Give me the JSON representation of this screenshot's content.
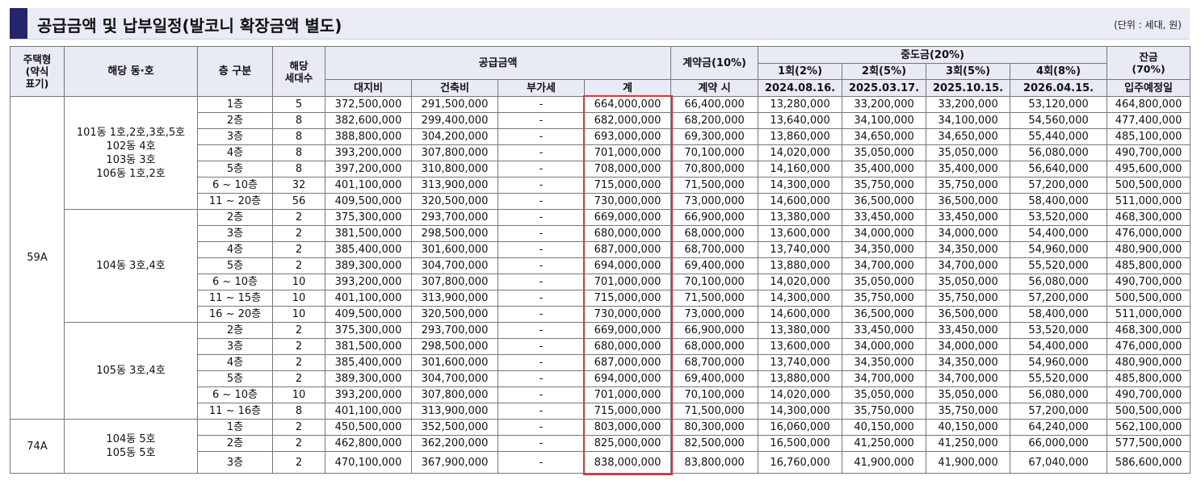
{
  "title": "공급금액 및 납부일정(발코니 확장금액 별도)",
  "unit": "(단위 : 세대, 원)",
  "header": {
    "type": "주택형\n(약식\n표기)",
    "dong_ho": "해당 동·호",
    "floor": "층 구분",
    "units": "해당\n세대수",
    "supply_price": "공급금액",
    "land": "대지비",
    "building": "건축비",
    "vat": "부가세",
    "total": "계",
    "deposit": "계약금(10%)",
    "deposit_when": "계약 시",
    "middle": "중도금(20%)",
    "m1": "1회(2%)",
    "m2": "2회(5%)",
    "m3": "3회(5%)",
    "m4": "4회(8%)",
    "m1_date": "2024.08.16.",
    "m2_date": "2025.03.17.",
    "m3_date": "2025.10.15.",
    "m4_date": "2026.04.15.",
    "balance": "잔금\n(70%)",
    "balance_when": "입주예정일"
  },
  "types": [
    {
      "label": "59A",
      "rows": 20
    },
    {
      "label": "74A",
      "rows": 3
    }
  ],
  "groups": [
    {
      "rows": 7,
      "lines": [
        "101동 1호,2호,3호,5호",
        "102동 4호",
        "103동 3호",
        "106동 1호,2호"
      ]
    },
    {
      "rows": 7,
      "lines": [
        "104동 3호,4호"
      ]
    },
    {
      "rows": 6,
      "lines": [
        "105동 3호,4호"
      ]
    },
    {
      "rows": 3,
      "lines": [
        "104동 5호",
        "105동 5호"
      ]
    }
  ],
  "rows": [
    [
      "1층",
      "5",
      "372,500,000",
      "291,500,000",
      "-",
      "664,000,000",
      "66,400,000",
      "13,280,000",
      "33,200,000",
      "33,200,000",
      "53,120,000",
      "464,800,000"
    ],
    [
      "2층",
      "8",
      "382,600,000",
      "299,400,000",
      "-",
      "682,000,000",
      "68,200,000",
      "13,640,000",
      "34,100,000",
      "34,100,000",
      "54,560,000",
      "477,400,000"
    ],
    [
      "3층",
      "8",
      "388,800,000",
      "304,200,000",
      "-",
      "693,000,000",
      "69,300,000",
      "13,860,000",
      "34,650,000",
      "34,650,000",
      "55,440,000",
      "485,100,000"
    ],
    [
      "4층",
      "8",
      "393,200,000",
      "307,800,000",
      "-",
      "701,000,000",
      "70,100,000",
      "14,020,000",
      "35,050,000",
      "35,050,000",
      "56,080,000",
      "490,700,000"
    ],
    [
      "5층",
      "8",
      "397,200,000",
      "310,800,000",
      "-",
      "708,000,000",
      "70,800,000",
      "14,160,000",
      "35,400,000",
      "35,400,000",
      "56,640,000",
      "495,600,000"
    ],
    [
      "6 ~ 10층",
      "32",
      "401,100,000",
      "313,900,000",
      "-",
      "715,000,000",
      "71,500,000",
      "14,300,000",
      "35,750,000",
      "35,750,000",
      "57,200,000",
      "500,500,000"
    ],
    [
      "11 ~ 20층",
      "56",
      "409,500,000",
      "320,500,000",
      "-",
      "730,000,000",
      "73,000,000",
      "14,600,000",
      "36,500,000",
      "36,500,000",
      "58,400,000",
      "511,000,000"
    ],
    [
      "2층",
      "2",
      "375,300,000",
      "293,700,000",
      "-",
      "669,000,000",
      "66,900,000",
      "13,380,000",
      "33,450,000",
      "33,450,000",
      "53,520,000",
      "468,300,000"
    ],
    [
      "3층",
      "2",
      "381,500,000",
      "298,500,000",
      "-",
      "680,000,000",
      "68,000,000",
      "13,600,000",
      "34,000,000",
      "34,000,000",
      "54,400,000",
      "476,000,000"
    ],
    [
      "4층",
      "2",
      "385,400,000",
      "301,600,000",
      "-",
      "687,000,000",
      "68,700,000",
      "13,740,000",
      "34,350,000",
      "34,350,000",
      "54,960,000",
      "480,900,000"
    ],
    [
      "5층",
      "2",
      "389,300,000",
      "304,700,000",
      "-",
      "694,000,000",
      "69,400,000",
      "13,880,000",
      "34,700,000",
      "34,700,000",
      "55,520,000",
      "485,800,000"
    ],
    [
      "6 ~ 10층",
      "10",
      "393,200,000",
      "307,800,000",
      "-",
      "701,000,000",
      "70,100,000",
      "14,020,000",
      "35,050,000",
      "35,050,000",
      "56,080,000",
      "490,700,000"
    ],
    [
      "11 ~ 15층",
      "10",
      "401,100,000",
      "313,900,000",
      "-",
      "715,000,000",
      "71,500,000",
      "14,300,000",
      "35,750,000",
      "35,750,000",
      "57,200,000",
      "500,500,000"
    ],
    [
      "16 ~ 20층",
      "10",
      "409,500,000",
      "320,500,000",
      "-",
      "730,000,000",
      "73,000,000",
      "14,600,000",
      "36,500,000",
      "36,500,000",
      "58,400,000",
      "511,000,000"
    ],
    [
      "2층",
      "2",
      "375,300,000",
      "293,700,000",
      "-",
      "669,000,000",
      "66,900,000",
      "13,380,000",
      "33,450,000",
      "33,450,000",
      "53,520,000",
      "468,300,000"
    ],
    [
      "3층",
      "2",
      "381,500,000",
      "298,500,000",
      "-",
      "680,000,000",
      "68,000,000",
      "13,600,000",
      "34,000,000",
      "34,000,000",
      "54,400,000",
      "476,000,000"
    ],
    [
      "4층",
      "2",
      "385,400,000",
      "301,600,000",
      "-",
      "687,000,000",
      "68,700,000",
      "13,740,000",
      "34,350,000",
      "34,350,000",
      "54,960,000",
      "480,900,000"
    ],
    [
      "5층",
      "2",
      "389,300,000",
      "304,700,000",
      "-",
      "694,000,000",
      "69,400,000",
      "13,880,000",
      "34,700,000",
      "34,700,000",
      "55,520,000",
      "485,800,000"
    ],
    [
      "6 ~ 10층",
      "10",
      "393,200,000",
      "307,800,000",
      "-",
      "701,000,000",
      "70,100,000",
      "14,020,000",
      "35,050,000",
      "35,050,000",
      "56,080,000",
      "490,700,000"
    ],
    [
      "11 ~ 16층",
      "8",
      "401,100,000",
      "313,900,000",
      "-",
      "715,000,000",
      "71,500,000",
      "14,300,000",
      "35,750,000",
      "35,750,000",
      "57,200,000",
      "500,500,000"
    ],
    [
      "1층",
      "2",
      "450,500,000",
      "352,500,000",
      "-",
      "803,000,000",
      "80,300,000",
      "16,060,000",
      "40,150,000",
      "40,150,000",
      "64,240,000",
      "562,100,000"
    ],
    [
      "2층",
      "2",
      "462,800,000",
      "362,200,000",
      "-",
      "825,000,000",
      "82,500,000",
      "16,500,000",
      "41,250,000",
      "41,250,000",
      "66,000,000",
      "577,500,000"
    ],
    [
      "3층",
      "2",
      "470,100,000",
      "367,900,000",
      "-",
      "838,000,000",
      "83,800,000",
      "16,760,000",
      "41,900,000",
      "41,900,000",
      "67,040,000",
      "586,600,000"
    ]
  ],
  "colors": {
    "accent": "#25256b",
    "header_bg": "#e8ebf6",
    "highlight": "#e0303a"
  }
}
